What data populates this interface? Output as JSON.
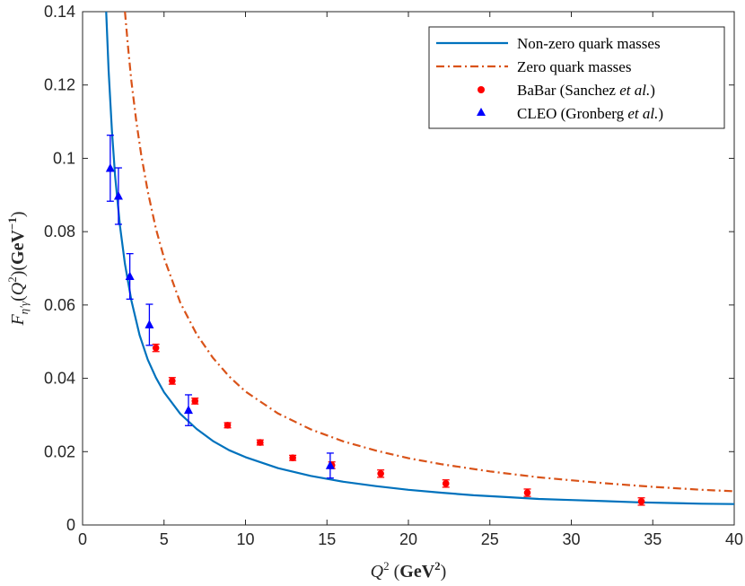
{
  "chart_data": {
    "type": "line",
    "title": "",
    "xlabel": "Q² (GeV²)",
    "ylabel": "F_{η′γ}(Q²)(GeV⁻¹)",
    "xlim": [
      0,
      40
    ],
    "ylim": [
      0,
      0.14
    ],
    "xticks": [
      0,
      5,
      10,
      15,
      20,
      25,
      30,
      35,
      40
    ],
    "xtick_labels": [
      "0",
      "5",
      "10",
      "15",
      "20",
      "25",
      "30",
      "35",
      "40"
    ],
    "yticks": [
      0,
      0.02,
      0.04,
      0.06,
      0.08,
      0.1,
      0.12,
      0.14
    ],
    "ytick_labels": [
      "0",
      "0.02",
      "0.04",
      "0.06",
      "0.08",
      "0.1",
      "0.12",
      "0.14"
    ],
    "grid": false,
    "legend_position": "top-right",
    "series": [
      {
        "name": "Non-zero quark masses",
        "kind": "line",
        "style": "solid",
        "color": "#0072BD",
        "x": [
          1.45,
          1.6,
          1.8,
          2.0,
          2.3,
          2.6,
          3.0,
          3.5,
          4.0,
          4.5,
          5.0,
          6.0,
          7.0,
          8.0,
          9.0,
          10.0,
          12.0,
          14.0,
          16.0,
          18.0,
          20.0,
          22.0,
          24.0,
          26.0,
          28.0,
          30.0,
          32.0,
          34.0,
          36.0,
          38.0,
          40.0
        ],
        "y": [
          0.14,
          0.124,
          0.1075,
          0.095,
          0.0815,
          0.0712,
          0.0612,
          0.0518,
          0.0451,
          0.0402,
          0.0362,
          0.0303,
          0.0262,
          0.0229,
          0.0204,
          0.0185,
          0.0155,
          0.0134,
          0.0118,
          0.0106,
          0.0096,
          0.0088,
          0.0081,
          0.0076,
          0.0071,
          0.0068,
          0.0065,
          0.0062,
          0.006,
          0.0058,
          0.0057
        ]
      },
      {
        "name": "Zero quark masses",
        "kind": "line",
        "style": "dash-dot",
        "color": "#D95319",
        "x": [
          2.6,
          2.8,
          3.0,
          3.3,
          3.6,
          4.0,
          4.5,
          5.0,
          6.0,
          7.0,
          8.0,
          9.0,
          10.0,
          12.0,
          14.0,
          16.0,
          18.0,
          20.0,
          22.0,
          25.0,
          28.0,
          30.0,
          32.0,
          35.0,
          38.0,
          40.0
        ],
        "y": [
          0.14,
          0.13,
          0.121,
          0.11,
          0.101,
          0.091,
          0.0808,
          0.0728,
          0.0606,
          0.052,
          0.0456,
          0.0405,
          0.0364,
          0.0304,
          0.0261,
          0.0228,
          0.0203,
          0.0182,
          0.0166,
          0.0146,
          0.013,
          0.0122,
          0.0114,
          0.0104,
          0.0096,
          0.0092
        ]
      },
      {
        "name": "BaBar (Sanchez et al.)",
        "kind": "scatter",
        "marker": "circle",
        "color": "#FF0000",
        "x": [
          4.5,
          5.5,
          6.9,
          8.9,
          10.9,
          12.9,
          15.3,
          18.3,
          22.3,
          27.3,
          34.3
        ],
        "y": [
          0.0483,
          0.0393,
          0.0338,
          0.0272,
          0.0225,
          0.0183,
          0.0163,
          0.014,
          0.0113,
          0.0088,
          0.0064
        ],
        "err": [
          0.001,
          0.0009,
          0.0008,
          0.0007,
          0.0007,
          0.0007,
          0.0009,
          0.001,
          0.001,
          0.001,
          0.001
        ]
      },
      {
        "name": "CLEO (Gronberg et al.)",
        "kind": "scatter",
        "marker": "triangle",
        "color": "#0000FF",
        "x": [
          1.7,
          2.2,
          2.9,
          4.1,
          6.5,
          15.2
        ],
        "y": [
          0.0973,
          0.0897,
          0.0678,
          0.0546,
          0.0313,
          0.0162
        ],
        "err": [
          0.009,
          0.0077,
          0.0062,
          0.0056,
          0.0042,
          0.0034
        ]
      }
    ]
  },
  "legend": {
    "items": [
      {
        "label": "Non-zero quark masses",
        "color": "#0072BD",
        "symbol": "solid-line"
      },
      {
        "label": "Zero quark masses",
        "color": "#D95319",
        "symbol": "dash-dot-line"
      },
      {
        "label_main": "BaBar (Sanchez ",
        "label_em": "et al.",
        "label_tail": ")",
        "color": "#FF0000",
        "symbol": "circle"
      },
      {
        "label_main": "CLEO (Gronberg ",
        "label_em": "et al.",
        "label_tail": ")",
        "color": "#0000FF",
        "symbol": "triangle"
      }
    ]
  },
  "colors": {
    "axis": "#262626",
    "background": "#FFFFFF"
  }
}
